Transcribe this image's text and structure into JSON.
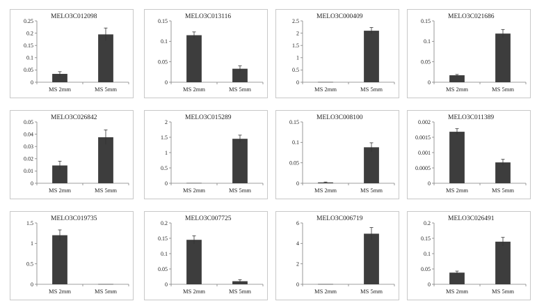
{
  "colors": {
    "bar": "#3d3d3d",
    "axis": "#7f7f7f",
    "border": "#c8c8c8",
    "text": "#222222"
  },
  "chart_data": [
    {
      "type": "bar",
      "title": "MELO3C012098",
      "categories": [
        "MS 2mm",
        "MS 5mm"
      ],
      "values": [
        0.034,
        0.195
      ],
      "errors": [
        0.009,
        0.026
      ],
      "ylim": [
        0,
        0.25
      ],
      "yticks": [
        "0",
        "0.05",
        "0.1",
        "0.15",
        "0.2",
        "0.25"
      ],
      "grid": false,
      "legend": "none"
    },
    {
      "type": "bar",
      "title": "MELO3C013116",
      "categories": [
        "MS 2mm",
        "MS 5mm"
      ],
      "values": [
        0.115,
        0.033
      ],
      "errors": [
        0.008,
        0.007
      ],
      "ylim": [
        0,
        0.15
      ],
      "yticks": [
        "0",
        "0.05",
        "0.1",
        "0.15"
      ],
      "grid": false,
      "legend": "none"
    },
    {
      "type": "bar",
      "title": "MELO3C000409",
      "categories": [
        "MS 2mm",
        "MS 5mm"
      ],
      "values": [
        0.01,
        2.1
      ],
      "errors": [
        0,
        0.13
      ],
      "ylim": [
        0,
        2.5
      ],
      "yticks": [
        "0",
        "0.5",
        "1",
        "1.5",
        "2",
        "2.5"
      ],
      "grid": false,
      "legend": "none"
    },
    {
      "type": "bar",
      "title": "MELO3C021686",
      "categories": [
        "MS 2mm",
        "MS 5mm"
      ],
      "values": [
        0.017,
        0.119
      ],
      "errors": [
        0.002,
        0.01
      ],
      "ylim": [
        0,
        0.15
      ],
      "yticks": [
        "0",
        "0.05",
        "0.1",
        "0.15"
      ],
      "grid": false,
      "legend": "none"
    },
    {
      "type": "bar",
      "title": "MELO3C026842",
      "categories": [
        "MS 2mm",
        "MS 5mm"
      ],
      "values": [
        0.0145,
        0.0375
      ],
      "errors": [
        0.0035,
        0.006
      ],
      "ylim": [
        0,
        0.05
      ],
      "yticks": [
        "0",
        "0.01",
        "0.02",
        "0.03",
        "0.04",
        "0.05"
      ],
      "grid": false,
      "legend": "none"
    },
    {
      "type": "bar",
      "title": "MELO3C015289",
      "categories": [
        "MS 2mm",
        "MS 5mm"
      ],
      "values": [
        0.01,
        1.45
      ],
      "errors": [
        0,
        0.12
      ],
      "ylim": [
        0,
        2
      ],
      "yticks": [
        "0",
        "0.5",
        "1",
        "1.5",
        "2"
      ],
      "grid": false,
      "legend": "none"
    },
    {
      "type": "bar",
      "title": "MELO3C008100",
      "categories": [
        "MS 2mm",
        "MS 5mm"
      ],
      "values": [
        0.002,
        0.088
      ],
      "errors": [
        0.001,
        0.011
      ],
      "ylim": [
        0,
        0.15
      ],
      "yticks": [
        "0",
        "0.05",
        "0.1",
        "0.15"
      ],
      "grid": false,
      "legend": "none"
    },
    {
      "type": "bar",
      "title": "MELO3C011389",
      "categories": [
        "MS 2mm",
        "MS 5mm"
      ],
      "values": [
        0.00168,
        0.00068
      ],
      "errors": [
        0.0001,
        0.0001
      ],
      "ylim": [
        0,
        0.002
      ],
      "yticks": [
        "0",
        "0.0005",
        "0.001",
        "0.0015",
        "0.002"
      ],
      "grid": false,
      "legend": "none"
    },
    {
      "type": "bar",
      "title": "MELO3C019735",
      "categories": [
        "MS 2mm",
        "MS 5mm"
      ],
      "values": [
        1.2,
        0.005
      ],
      "errors": [
        0.13,
        0
      ],
      "ylim": [
        0,
        1.5
      ],
      "yticks": [
        "0",
        "0.5",
        "1",
        "1.5"
      ],
      "grid": false,
      "legend": "none"
    },
    {
      "type": "bar",
      "title": "MELO3C007725",
      "categories": [
        "MS 2mm",
        "MS 5mm"
      ],
      "values": [
        0.145,
        0.01
      ],
      "errors": [
        0.013,
        0.005
      ],
      "ylim": [
        0,
        0.2
      ],
      "yticks": [
        "0",
        "0.05",
        "0.1",
        "0.15",
        "0.2"
      ],
      "grid": false,
      "legend": "none"
    },
    {
      "type": "bar",
      "title": "MELO3C006719",
      "categories": [
        "MS 2mm",
        "MS 5mm"
      ],
      "values": [
        0.02,
        4.95
      ],
      "errors": [
        0,
        0.6
      ],
      "ylim": [
        0,
        6
      ],
      "yticks": [
        "0",
        "2",
        "4",
        "6"
      ],
      "grid": false,
      "legend": "none"
    },
    {
      "type": "bar",
      "title": "MELO3C026491",
      "categories": [
        "MS 2mm",
        "MS 5mm"
      ],
      "values": [
        0.038,
        0.139
      ],
      "errors": [
        0.005,
        0.014
      ],
      "ylim": [
        0,
        0.2
      ],
      "yticks": [
        "0",
        "0.05",
        "0.1",
        "0.15",
        "0.2"
      ],
      "grid": false,
      "legend": "none"
    }
  ]
}
